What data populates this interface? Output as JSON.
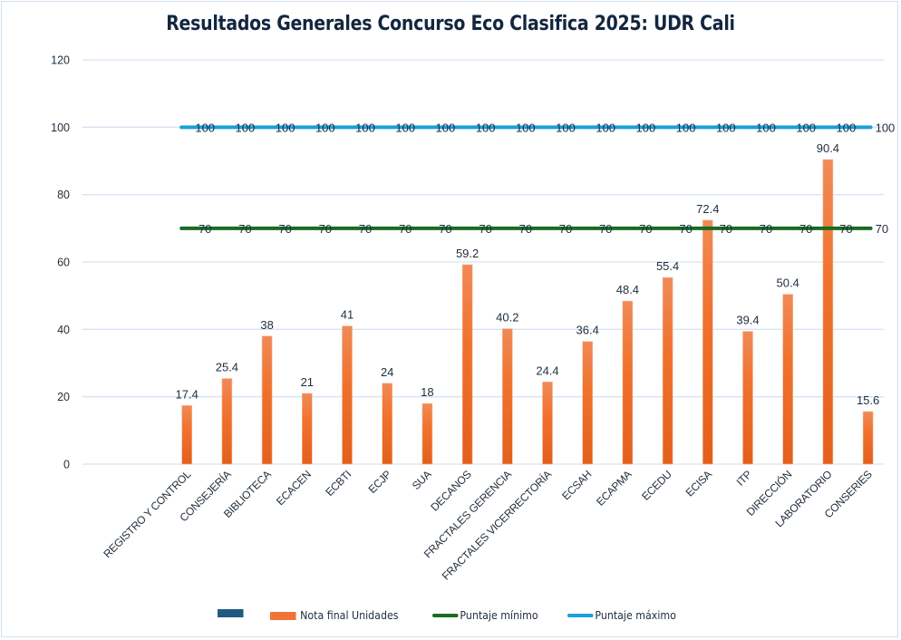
{
  "chart_data": {
    "type": "bar",
    "title": "Resultados Generales Concurso Eco Clasifica 2025: UDR Cali",
    "xlabel": "",
    "ylabel": "",
    "ylim": [
      0,
      120
    ],
    "yticks": [
      "0",
      "20",
      "40",
      "60",
      "80",
      "100",
      "120"
    ],
    "grid": true,
    "legend_position": "bottom",
    "categories": [
      "",
      "REGISTRO Y CONTROL",
      "CONSEJERÍA",
      "BIBLIOTECA",
      "ECACEN",
      "ECBTI",
      "ECJP",
      "SUA",
      "DECANOS",
      "FRACTALES GERENCIA",
      "FRACTALES VICERRECTORÍA",
      "ECSAH",
      "ECAPMA",
      "ECEDU",
      "ECISA",
      "ITP",
      "DIRECCIÓN",
      "LABORATORIO",
      "CONSERIES"
    ],
    "series": [
      {
        "name": "",
        "type": "bar",
        "color": "#1f5a80",
        "values": [
          null,
          null,
          null,
          null,
          null,
          null,
          null,
          null,
          null,
          null,
          null,
          null,
          null,
          null,
          null,
          null,
          null,
          null,
          null
        ]
      },
      {
        "name": "Nota final Unidades",
        "type": "bar",
        "color": "#ef7436",
        "values": [
          null,
          17.4,
          25.4,
          38,
          21,
          41,
          24,
          18,
          59.2,
          40.2,
          24.4,
          36.4,
          48.4,
          55.4,
          72.4,
          39.4,
          50.4,
          90.4,
          15.6
        ],
        "labels": [
          "",
          "17.4",
          "25.4",
          "38",
          "21",
          "41",
          "24",
          "18",
          "59.2",
          "40.2",
          "24.4",
          "36.4",
          "48.4",
          "55.4",
          "72.4",
          "39.4",
          "50.4",
          "90.4",
          "15.6"
        ]
      },
      {
        "name": "Puntaje mínimo",
        "type": "line",
        "color": "#1a6b25",
        "values": [
          null,
          70,
          70,
          70,
          70,
          70,
          70,
          70,
          70,
          70,
          70,
          70,
          70,
          70,
          70,
          70,
          70,
          70,
          70
        ],
        "labels": [
          "",
          "70",
          "70",
          "70",
          "70",
          "70",
          "70",
          "70",
          "70",
          "70",
          "70",
          "70",
          "70",
          "70",
          "70",
          "70",
          "70",
          "70",
          "70"
        ]
      },
      {
        "name": "Puntaje máximo",
        "type": "line",
        "color": "#1aa0d8",
        "values": [
          null,
          100,
          100,
          100,
          100,
          100,
          100,
          100,
          100,
          100,
          100,
          100,
          100,
          100,
          100,
          100,
          100,
          100,
          100
        ],
        "labels": [
          "",
          "100",
          "100",
          "100",
          "100",
          "100",
          "100",
          "100",
          "100",
          "100",
          "100",
          "100",
          "100",
          "100",
          "100",
          "100",
          "100",
          "100",
          "100"
        ]
      }
    ]
  },
  "colors": {
    "grid": "#d6e4f4",
    "text": "#1f2d3d",
    "title": "#12263f",
    "bar_top": "#f08a58",
    "bar_bottom": "#e35f1c"
  }
}
